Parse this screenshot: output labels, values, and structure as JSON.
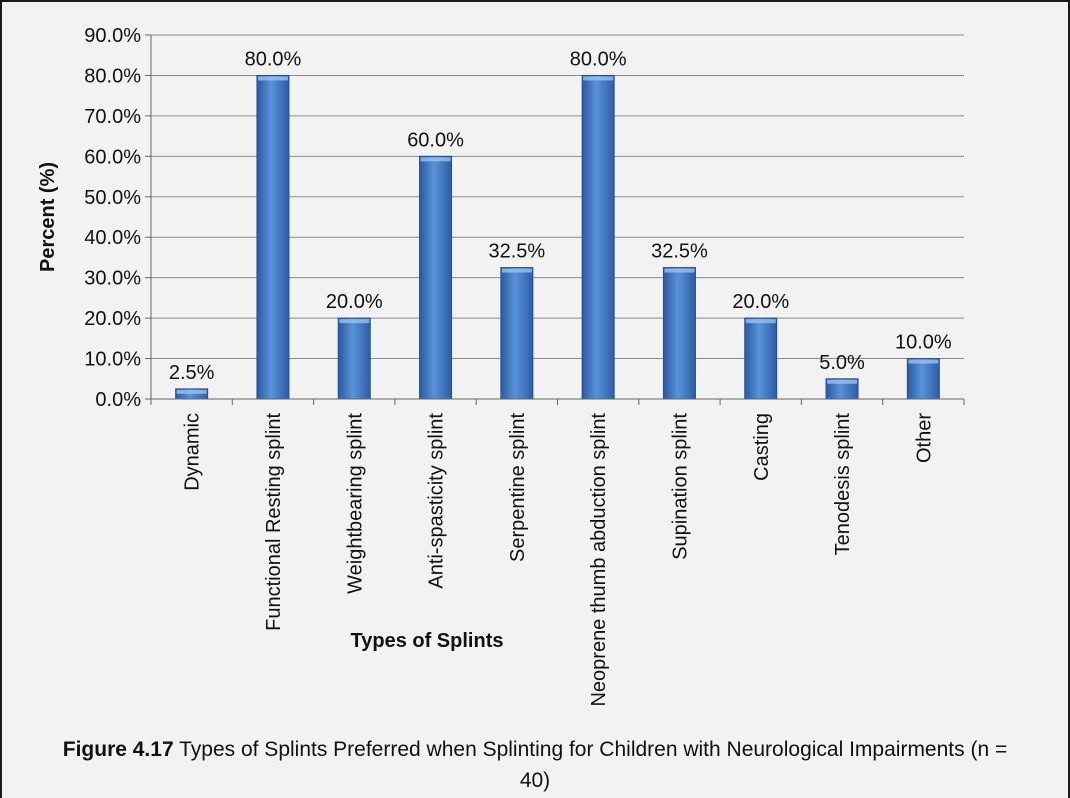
{
  "chart_data": {
    "type": "bar",
    "categories": [
      "Dynamic",
      "Functional Resting splint",
      "Weightbearing splint",
      "Anti-spasticity splint",
      "Serpentine splint",
      "Neoprene thumb abduction splint",
      "Supination splint",
      "Casting",
      "Tenodesis splint",
      "Other"
    ],
    "values": [
      2.5,
      80.0,
      20.0,
      60.0,
      32.5,
      80.0,
      32.5,
      20.0,
      5.0,
      10.0
    ],
    "data_labels": [
      "2.5%",
      "80.0%",
      "20.0%",
      "60.0%",
      "32.5%",
      "80.0%",
      "32.5%",
      "20.0%",
      "5.0%",
      "10.0%"
    ],
    "y_ticks": [
      "0.0%",
      "10.0%",
      "20.0%",
      "30.0%",
      "40.0%",
      "50.0%",
      "60.0%",
      "70.0%",
      "80.0%",
      "90.0%"
    ],
    "ylim": [
      0,
      90
    ],
    "ylabel": "Percent (%)",
    "xlabel": "Types of Splints",
    "grid": true,
    "legend": "none",
    "bar_color": "#3c72c0"
  },
  "caption": {
    "figure_id": "Figure 4.17",
    "text": " Types of Splints Preferred when Splinting for Children with Neurological Impairments (n = 40)"
  }
}
